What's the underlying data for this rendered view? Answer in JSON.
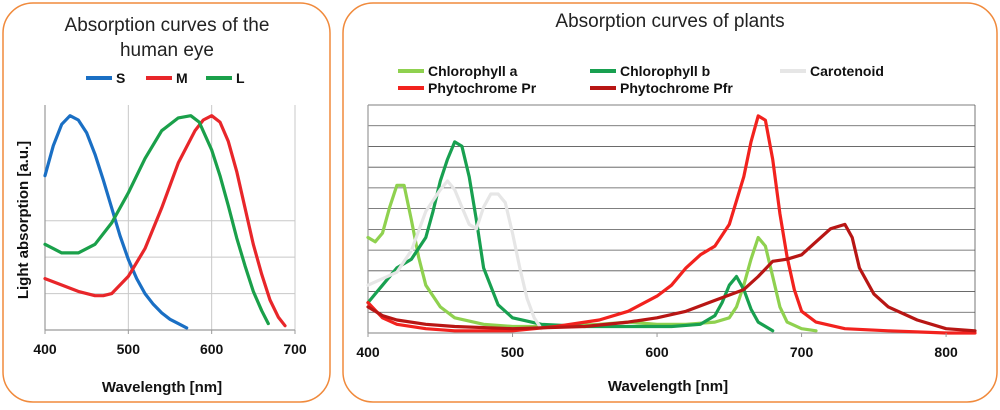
{
  "colors": {
    "frame": "#f08a3c",
    "grid": "#c8c8c8",
    "axis": "#9a9a9a"
  },
  "chart_data": [
    {
      "type": "line",
      "title_lines": [
        "Absorption curves of the",
        "human eye"
      ],
      "xlabel": "Wavelength [nm]",
      "ylabel": "Light absorption [a.u.]",
      "xlim": [
        400,
        700
      ],
      "ylim": [
        0,
        1.05
      ],
      "x_ticks": [
        "400",
        "500",
        "600",
        "700"
      ],
      "grid": "vertical",
      "legend_position": "top",
      "series": [
        {
          "name": "S",
          "color": "#1a6fc4",
          "points": [
            [
              400,
              0.72
            ],
            [
              410,
              0.86
            ],
            [
              420,
              0.96
            ],
            [
              430,
              1.0
            ],
            [
              440,
              0.98
            ],
            [
              450,
              0.92
            ],
            [
              460,
              0.82
            ],
            [
              470,
              0.7
            ],
            [
              480,
              0.57
            ],
            [
              490,
              0.44
            ],
            [
              500,
              0.33
            ],
            [
              510,
              0.24
            ],
            [
              520,
              0.17
            ],
            [
              530,
              0.12
            ],
            [
              540,
              0.08
            ],
            [
              550,
              0.05
            ],
            [
              560,
              0.03
            ],
            [
              570,
              0.01
            ]
          ]
        },
        {
          "name": "M",
          "color": "#e8262a",
          "points": [
            [
              400,
              0.24
            ],
            [
              420,
              0.21
            ],
            [
              440,
              0.18
            ],
            [
              460,
              0.16
            ],
            [
              470,
              0.16
            ],
            [
              480,
              0.17
            ],
            [
              500,
              0.25
            ],
            [
              520,
              0.38
            ],
            [
              540,
              0.57
            ],
            [
              560,
              0.78
            ],
            [
              580,
              0.93
            ],
            [
              590,
              0.98
            ],
            [
              600,
              1.0
            ],
            [
              610,
              0.97
            ],
            [
              620,
              0.88
            ],
            [
              630,
              0.74
            ],
            [
              640,
              0.57
            ],
            [
              650,
              0.4
            ],
            [
              660,
              0.26
            ],
            [
              670,
              0.14
            ],
            [
              680,
              0.06
            ],
            [
              688,
              0.02
            ]
          ]
        },
        {
          "name": "L",
          "color": "#1aa04a",
          "points": [
            [
              400,
              0.4
            ],
            [
              410,
              0.38
            ],
            [
              420,
              0.36
            ],
            [
              440,
              0.36
            ],
            [
              460,
              0.4
            ],
            [
              480,
              0.5
            ],
            [
              500,
              0.64
            ],
            [
              520,
              0.8
            ],
            [
              540,
              0.93
            ],
            [
              560,
              0.99
            ],
            [
              575,
              1.0
            ],
            [
              585,
              0.97
            ],
            [
              600,
              0.84
            ],
            [
              610,
              0.72
            ],
            [
              620,
              0.58
            ],
            [
              630,
              0.43
            ],
            [
              640,
              0.3
            ],
            [
              650,
              0.18
            ],
            [
              660,
              0.09
            ],
            [
              668,
              0.03
            ]
          ]
        }
      ]
    },
    {
      "type": "line",
      "title": "Absorption curves of plants",
      "xlabel": "Wavelength [nm]",
      "ylabel": "",
      "xlim": [
        400,
        820
      ],
      "ylim": [
        0,
        1.05
      ],
      "x_ticks": [
        "400",
        "500",
        "600",
        "700",
        "800"
      ],
      "grid": "horizontal",
      "legend_position": "top",
      "series": [
        {
          "name": "Chlorophyll a",
          "color": "#8fd14f",
          "points": [
            [
              400,
              0.44
            ],
            [
              405,
              0.42
            ],
            [
              410,
              0.46
            ],
            [
              415,
              0.58
            ],
            [
              420,
              0.68
            ],
            [
              425,
              0.68
            ],
            [
              430,
              0.52
            ],
            [
              435,
              0.35
            ],
            [
              440,
              0.22
            ],
            [
              450,
              0.12
            ],
            [
              460,
              0.07
            ],
            [
              480,
              0.04
            ],
            [
              500,
              0.03
            ],
            [
              530,
              0.03
            ],
            [
              560,
              0.04
            ],
            [
              580,
              0.05
            ],
            [
              600,
              0.04
            ],
            [
              620,
              0.04
            ],
            [
              640,
              0.05
            ],
            [
              650,
              0.07
            ],
            [
              655,
              0.12
            ],
            [
              660,
              0.22
            ],
            [
              665,
              0.34
            ],
            [
              670,
              0.44
            ],
            [
              675,
              0.4
            ],
            [
              680,
              0.26
            ],
            [
              685,
              0.12
            ],
            [
              690,
              0.05
            ],
            [
              700,
              0.02
            ],
            [
              710,
              0.01
            ]
          ]
        },
        {
          "name": "Chlorophyll b",
          "color": "#18a050",
          "points": [
            [
              400,
              0.14
            ],
            [
              410,
              0.22
            ],
            [
              420,
              0.3
            ],
            [
              430,
              0.34
            ],
            [
              440,
              0.44
            ],
            [
              445,
              0.56
            ],
            [
              450,
              0.7
            ],
            [
              455,
              0.8
            ],
            [
              460,
              0.88
            ],
            [
              465,
              0.86
            ],
            [
              470,
              0.72
            ],
            [
              475,
              0.52
            ],
            [
              480,
              0.3
            ],
            [
              490,
              0.13
            ],
            [
              500,
              0.07
            ],
            [
              520,
              0.04
            ],
            [
              550,
              0.03
            ],
            [
              580,
              0.03
            ],
            [
              610,
              0.03
            ],
            [
              630,
              0.04
            ],
            [
              640,
              0.08
            ],
            [
              645,
              0.14
            ],
            [
              650,
              0.22
            ],
            [
              655,
              0.26
            ],
            [
              660,
              0.2
            ],
            [
              665,
              0.11
            ],
            [
              670,
              0.05
            ],
            [
              680,
              0.01
            ]
          ]
        },
        {
          "name": "Carotenoid",
          "color": "#e6e6e6",
          "points": [
            [
              400,
              0.22
            ],
            [
              420,
              0.28
            ],
            [
              430,
              0.38
            ],
            [
              440,
              0.56
            ],
            [
              450,
              0.66
            ],
            [
              455,
              0.7
            ],
            [
              460,
              0.66
            ],
            [
              465,
              0.58
            ],
            [
              470,
              0.5
            ],
            [
              475,
              0.48
            ],
            [
              480,
              0.58
            ],
            [
              485,
              0.64
            ],
            [
              490,
              0.64
            ],
            [
              495,
              0.6
            ],
            [
              500,
              0.46
            ],
            [
              505,
              0.3
            ],
            [
              510,
              0.16
            ],
            [
              515,
              0.07
            ],
            [
              520,
              0.02
            ]
          ]
        },
        {
          "name": "Phytochrome Pr",
          "color": "#f2221e",
          "points": [
            [
              400,
              0.14
            ],
            [
              410,
              0.07
            ],
            [
              420,
              0.04
            ],
            [
              440,
              0.02
            ],
            [
              460,
              0.01
            ],
            [
              500,
              0.01
            ],
            [
              530,
              0.03
            ],
            [
              560,
              0.06
            ],
            [
              580,
              0.1
            ],
            [
              600,
              0.17
            ],
            [
              610,
              0.22
            ],
            [
              620,
              0.3
            ],
            [
              630,
              0.36
            ],
            [
              640,
              0.4
            ],
            [
              650,
              0.5
            ],
            [
              660,
              0.72
            ],
            [
              665,
              0.88
            ],
            [
              670,
              1.0
            ],
            [
              675,
              0.98
            ],
            [
              680,
              0.8
            ],
            [
              685,
              0.55
            ],
            [
              690,
              0.35
            ],
            [
              695,
              0.2
            ],
            [
              700,
              0.1
            ],
            [
              710,
              0.05
            ],
            [
              730,
              0.02
            ],
            [
              760,
              0.01
            ],
            [
              800,
              0.0
            ],
            [
              820,
              0.0
            ]
          ]
        },
        {
          "name": "Phytochrome Pfr",
          "color": "#b81614",
          "points": [
            [
              400,
              0.12
            ],
            [
              410,
              0.08
            ],
            [
              420,
              0.06
            ],
            [
              440,
              0.04
            ],
            [
              460,
              0.03
            ],
            [
              500,
              0.02
            ],
            [
              550,
              0.03
            ],
            [
              580,
              0.05
            ],
            [
              600,
              0.07
            ],
            [
              620,
              0.1
            ],
            [
              640,
              0.15
            ],
            [
              660,
              0.2
            ],
            [
              670,
              0.26
            ],
            [
              680,
              0.33
            ],
            [
              690,
              0.34
            ],
            [
              700,
              0.36
            ],
            [
              710,
              0.42
            ],
            [
              720,
              0.48
            ],
            [
              730,
              0.5
            ],
            [
              735,
              0.44
            ],
            [
              740,
              0.3
            ],
            [
              750,
              0.18
            ],
            [
              760,
              0.12
            ],
            [
              780,
              0.06
            ],
            [
              800,
              0.02
            ],
            [
              820,
              0.01
            ]
          ]
        }
      ]
    }
  ]
}
